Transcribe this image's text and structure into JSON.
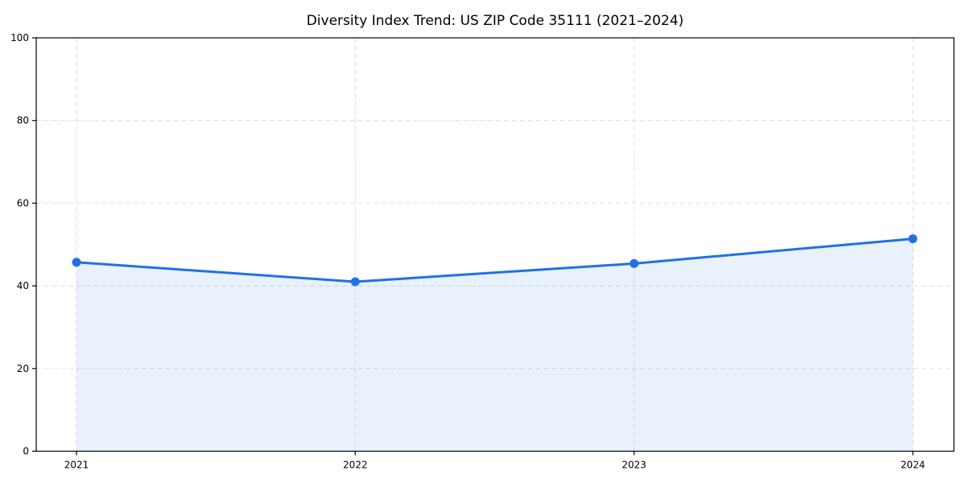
{
  "chart_data": {
    "type": "area",
    "title": "Diversity Index Trend: US ZIP Code 35111 (2021–2024)",
    "categories": [
      "2021",
      "2022",
      "2023",
      "2024"
    ],
    "values": [
      45.7,
      41.0,
      45.4,
      51.4
    ],
    "series": [
      {
        "name": "Diversity Index",
        "values": [
          45.7,
          41.0,
          45.4,
          51.4
        ]
      }
    ],
    "xlabel": "",
    "ylabel": "",
    "ylim": [
      0,
      100
    ],
    "yticks": [
      0,
      20,
      40,
      60,
      80,
      100
    ],
    "ytick_labels": [
      "0",
      "20",
      "40",
      "60",
      "80",
      "100"
    ],
    "grid": true,
    "grid_style": "dashed",
    "legend_position": "none",
    "line_color": "#2171e4",
    "marker_color": "#2171e4",
    "marker_shape": "circle",
    "fill_color": "rgba(33, 113, 228, 0.10)",
    "grid_color": "#dedede",
    "axis_color": "#000000"
  }
}
